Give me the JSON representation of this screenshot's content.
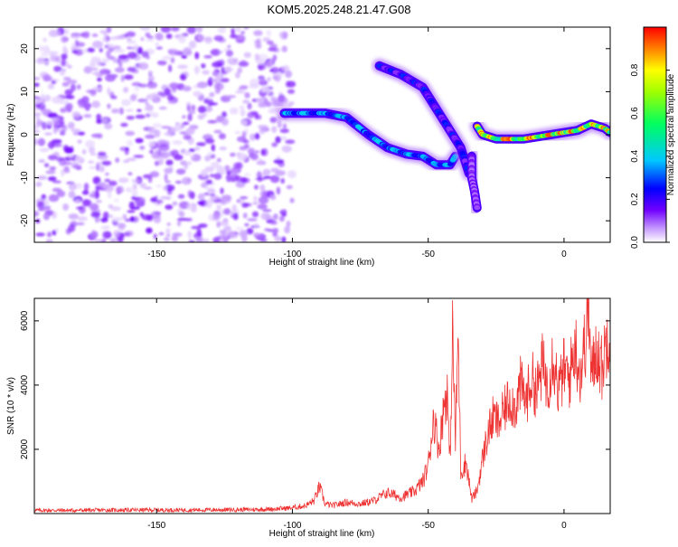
{
  "title": "KOM5.2025.248.21.47.G08",
  "chart_data": [
    {
      "type": "heatmap",
      "title": "KOM5.2025.248.21.47.G08",
      "xlabel": "Height of straight line (km)",
      "ylabel": "Frequency (Hz)",
      "xlim": [
        -195,
        17
      ],
      "ylim": [
        -25,
        25
      ],
      "xticks": [
        -150,
        -100,
        -50,
        0
      ],
      "yticks": [
        -20,
        -10,
        0,
        10,
        20
      ],
      "colorbar": {
        "label": "Normalized spectral amplitude",
        "range": [
          0,
          1
        ],
        "ticks": [
          0.0,
          0.2,
          0.4,
          0.6,
          0.8
        ],
        "colormap": "rainbow-white",
        "colors": [
          "#ffffff",
          "#b070ff",
          "#7000ff",
          "#0000ff",
          "#00c8ff",
          "#00ff80",
          "#80ff00",
          "#ffff00",
          "#ff8000",
          "#ff0000"
        ]
      },
      "noise_region": {
        "x_range": [
          -195,
          -100
        ],
        "y_range": [
          -25,
          25
        ],
        "amplitude_range": [
          0.02,
          0.15
        ]
      },
      "ridges": [
        {
          "name": "main-descending",
          "points": [
            [
              -103,
              5
            ],
            [
              -95,
              5
            ],
            [
              -88,
              5
            ],
            [
              -80,
              4
            ],
            [
              -72,
              0
            ],
            [
              -65,
              -3
            ],
            [
              -58,
              -4.5
            ],
            [
              -52,
              -5
            ],
            [
              -47,
              -7
            ],
            [
              -42,
              -7
            ],
            [
              -40,
              -5
            ]
          ],
          "amplitude": [
            0.22,
            0.4
          ]
        },
        {
          "name": "upper-branch",
          "points": [
            [
              -68,
              16
            ],
            [
              -60,
              14
            ],
            [
              -52,
              11
            ],
            [
              -47,
              6
            ],
            [
              -42,
              1
            ],
            [
              -38,
              -3
            ],
            [
              -35,
              -9
            ]
          ],
          "amplitude": [
            0.12,
            0.28
          ]
        },
        {
          "name": "right-segment",
          "points": [
            [
              -32,
              2
            ],
            [
              -30,
              0
            ],
            [
              -25,
              -1
            ],
            [
              -15,
              -1
            ],
            [
              -5,
              0
            ],
            [
              0,
              0.5
            ],
            [
              5,
              1
            ],
            [
              10,
              2.5
            ],
            [
              15,
              1.5
            ],
            [
              17,
              0.5
            ]
          ],
          "amplitude": [
            0.45,
            0.95
          ]
        },
        {
          "name": "vertical-tail",
          "points": [
            [
              -34,
              -5
            ],
            [
              -34,
              -10
            ],
            [
              -33,
              -13
            ],
            [
              -32,
              -17
            ]
          ],
          "amplitude": [
            0.08,
            0.15
          ]
        }
      ]
    },
    {
      "type": "line",
      "xlabel": "Height of straight line (km)",
      "ylabel": "SNR (10 * v/v)",
      "xlim": [
        -195,
        17
      ],
      "ylim": [
        0,
        6700
      ],
      "xticks": [
        -150,
        -100,
        -50,
        0
      ],
      "yticks": [
        2000,
        4000,
        6000
      ],
      "series": [
        {
          "name": "SNR",
          "color": "#ee3333",
          "x": [
            -195,
            -180,
            -160,
            -140,
            -120,
            -110,
            -105,
            -100,
            -95,
            -92,
            -90,
            -88,
            -85,
            -80,
            -75,
            -70,
            -65,
            -60,
            -55,
            -52,
            -50,
            -48,
            -46,
            -44,
            -43,
            -42,
            -41,
            -40,
            -39,
            -38,
            -36,
            -34,
            -32,
            -30,
            -28,
            -26,
            -24,
            -22,
            -20,
            -18,
            -16,
            -14,
            -12,
            -10,
            -8,
            -6,
            -4,
            -2,
            0,
            2,
            4,
            6,
            8,
            9,
            10,
            12,
            14,
            16,
            17
          ],
          "y": [
            100,
            100,
            110,
            110,
            120,
            130,
            150,
            180,
            250,
            400,
            850,
            300,
            250,
            350,
            300,
            400,
            650,
            500,
            700,
            1000,
            1500,
            3000,
            2000,
            3500,
            3800,
            1500,
            5700,
            2200,
            5600,
            1300,
            1600,
            450,
            700,
            1700,
            2500,
            3000,
            2800,
            3200,
            3600,
            3300,
            4000,
            3500,
            4200,
            3800,
            4600,
            4000,
            5000,
            3800,
            4500,
            4200,
            5300,
            4300,
            5500,
            6700,
            4200,
            5200,
            4500,
            5600,
            5800
          ]
        }
      ]
    }
  ]
}
